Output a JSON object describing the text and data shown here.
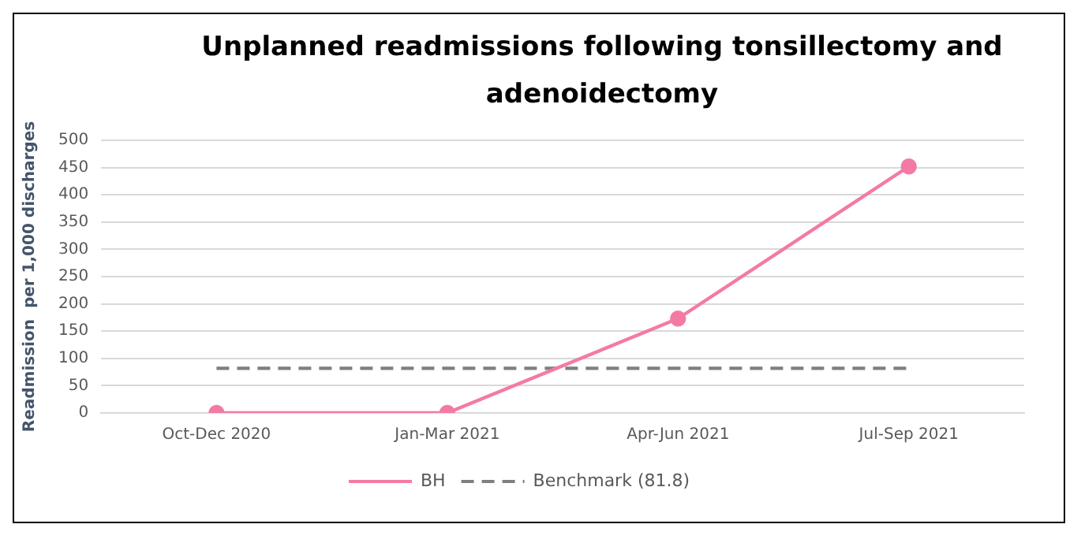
{
  "chart_data": {
    "type": "line",
    "title": "Unplanned readmissions following tonsillectomy and adenoidectomy",
    "ylabel": "Readmission  per 1,000 discharges",
    "categories": [
      "Oct-Dec 2020",
      "Jan-Mar 2021",
      "Apr-Jun 2021",
      "Jul-Sep 2021"
    ],
    "series": [
      {
        "name": "BH",
        "color": "#f47aa6",
        "values": [
          0,
          0,
          173,
          452
        ],
        "marker": "circle",
        "line_style": "solid"
      },
      {
        "name": "Benchmark (81.8)",
        "color": "#7f7f7f",
        "values": [
          81.8,
          81.8,
          81.8,
          81.8
        ],
        "marker": "none",
        "line_style": "dashed"
      }
    ],
    "ylim": [
      0,
      500
    ],
    "yticks": [
      0,
      50,
      100,
      150,
      200,
      250,
      300,
      350,
      400,
      450,
      500
    ],
    "grid": "y",
    "legend": "bottom"
  }
}
